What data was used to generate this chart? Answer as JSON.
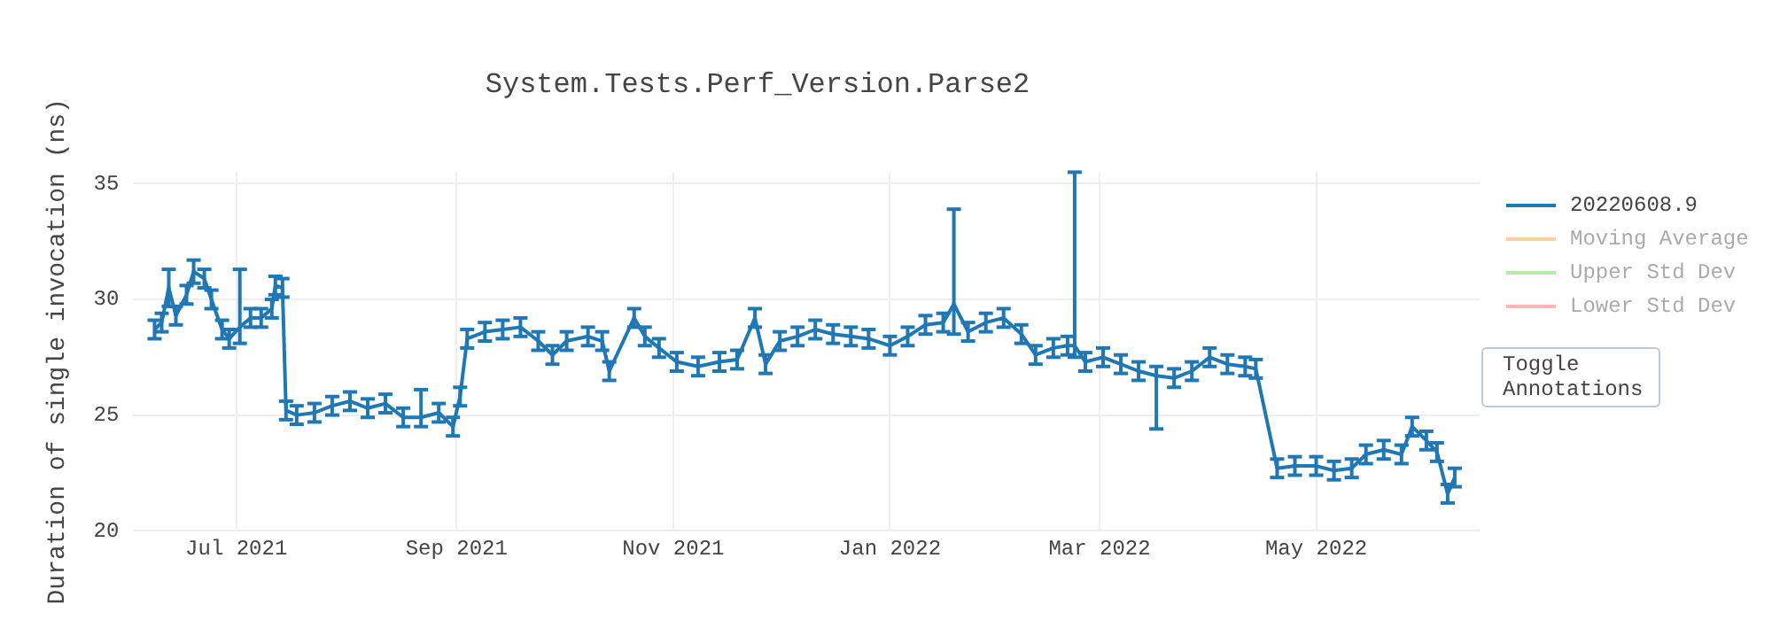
{
  "chart_data": {
    "type": "line",
    "title": "System.Tests.Perf_Version.Parse2",
    "ylabel": "Duration of single invocation (ns)",
    "x": [
      "2021-06-08",
      "2021-06-10",
      "2021-06-12",
      "2021-06-14",
      "2021-06-17",
      "2021-06-19",
      "2021-06-22",
      "2021-06-24",
      "2021-06-27",
      "2021-06-29",
      "2021-07-02",
      "2021-07-05",
      "2021-07-08",
      "2021-07-11",
      "2021-07-12",
      "2021-07-14",
      "2021-07-15",
      "2021-07-18",
      "2021-07-23",
      "2021-07-28",
      "2021-08-02",
      "2021-08-07",
      "2021-08-12",
      "2021-08-17",
      "2021-08-22",
      "2021-08-27",
      "2021-08-31",
      "2021-09-02",
      "2021-09-04",
      "2021-09-09",
      "2021-09-14",
      "2021-09-19",
      "2021-09-24",
      "2021-09-28",
      "2021-10-02",
      "2021-10-08",
      "2021-10-12",
      "2021-10-14",
      "2021-10-21",
      "2021-10-24",
      "2021-10-28",
      "2021-11-02",
      "2021-11-08",
      "2021-11-14",
      "2021-11-19",
      "2021-11-24",
      "2021-11-27",
      "2021-12-01",
      "2021-12-06",
      "2021-12-11",
      "2021-12-16",
      "2021-12-21",
      "2021-12-26",
      "2022-01-01",
      "2022-01-06",
      "2022-01-11",
      "2022-01-16",
      "2022-01-19",
      "2022-01-23",
      "2022-01-28",
      "2022-02-02",
      "2022-02-07",
      "2022-02-11",
      "2022-02-16",
      "2022-02-20",
      "2022-02-22",
      "2022-02-25",
      "2022-03-02",
      "2022-03-07",
      "2022-03-12",
      "2022-03-17",
      "2022-03-22",
      "2022-03-27",
      "2022-04-01",
      "2022-04-06",
      "2022-04-11",
      "2022-04-14",
      "2022-04-20",
      "2022-04-25",
      "2022-05-01",
      "2022-05-06",
      "2022-05-11",
      "2022-05-15",
      "2022-05-20",
      "2022-05-25",
      "2022-05-28",
      "2022-06-01",
      "2022-06-04",
      "2022-06-07",
      "2022-06-09"
    ],
    "series": [
      {
        "name": "20220608.9",
        "color": "#1f77b4",
        "values": [
          28.7,
          29.0,
          30.5,
          29.3,
          30.2,
          31.2,
          30.9,
          30.0,
          28.7,
          28.3,
          28.8,
          29.2,
          29.2,
          29.6,
          30.6,
          30.5,
          25.2,
          25.0,
          25.1,
          25.4,
          25.6,
          25.3,
          25.5,
          24.9,
          24.9,
          25.1,
          24.5,
          25.8,
          28.3,
          28.6,
          28.7,
          28.8,
          28.2,
          27.6,
          28.2,
          28.4,
          28.2,
          26.9,
          29.2,
          28.4,
          27.9,
          27.3,
          27.1,
          27.3,
          27.4,
          29.2,
          27.2,
          28.2,
          28.4,
          28.7,
          28.5,
          28.4,
          28.3,
          28.0,
          28.4,
          28.9,
          29.0,
          29.8,
          28.6,
          29.0,
          29.2,
          28.5,
          27.6,
          27.9,
          28.0,
          28.0,
          27.3,
          27.5,
          27.2,
          26.9,
          26.7,
          26.6,
          26.9,
          27.5,
          27.2,
          27.1,
          27.0,
          22.7,
          22.8,
          22.8,
          22.6,
          22.7,
          23.3,
          23.5,
          23.3,
          24.5,
          23.9,
          23.4,
          21.6,
          22.3
        ],
        "errors": [
          0.4,
          0.4,
          0.8,
          0.4,
          0.4,
          0.5,
          0.4,
          0.4,
          0.4,
          0.4,
          [
            28.1,
            31.3
          ],
          0.4,
          0.4,
          0.4,
          0.4,
          0.4,
          0.4,
          0.4,
          0.4,
          0.4,
          0.4,
          0.4,
          0.4,
          0.4,
          [
            24.5,
            26.1
          ],
          0.4,
          0.4,
          0.4,
          0.4,
          0.4,
          0.4,
          0.4,
          0.4,
          0.4,
          0.4,
          0.4,
          0.4,
          0.4,
          0.4,
          0.4,
          0.4,
          0.4,
          0.4,
          0.4,
          0.4,
          0.4,
          0.4,
          0.4,
          0.4,
          0.4,
          0.4,
          0.4,
          0.4,
          0.4,
          0.4,
          0.4,
          0.4,
          [
            28.5,
            33.9
          ],
          0.4,
          0.4,
          0.4,
          0.4,
          0.4,
          0.4,
          0.4,
          [
            27.5,
            35.5
          ],
          0.4,
          0.4,
          0.4,
          0.4,
          [
            24.4,
            27.1
          ],
          0.4,
          0.4,
          0.4,
          0.4,
          0.4,
          0.4,
          0.4,
          0.4,
          0.4,
          0.4,
          0.4,
          0.4,
          0.4,
          0.4,
          0.4,
          0.4,
          0.4,
          0.4,
          0.4
        ]
      },
      {
        "name": "Moving Average",
        "color": "#ffbb78",
        "values": [
          null,
          null,
          null,
          null,
          null,
          null,
          null,
          null,
          null,
          null,
          null,
          null,
          null,
          null,
          null,
          null,
          null,
          null,
          null,
          null,
          null,
          null,
          null,
          null,
          null,
          null,
          null,
          null,
          null,
          null,
          null,
          null,
          null,
          null,
          null,
          null,
          null,
          null,
          null,
          null,
          null,
          null,
          null,
          null,
          null,
          null,
          null,
          null,
          null,
          null,
          null,
          null,
          null,
          null,
          null,
          null,
          null,
          null,
          null,
          null,
          null,
          null,
          null,
          null,
          null,
          null,
          null,
          null,
          null,
          null,
          null,
          null,
          null,
          null,
          null,
          null,
          null,
          null,
          null,
          null,
          null,
          null,
          null,
          null,
          null,
          null,
          null,
          null,
          null,
          null
        ]
      },
      {
        "name": "Upper Std Dev",
        "color": "#98df8a",
        "values": [
          null,
          null,
          null,
          null,
          null,
          null,
          null,
          null,
          null,
          null,
          null,
          null,
          null,
          null,
          null,
          null,
          null,
          null,
          null,
          null,
          null,
          null,
          null,
          null,
          null,
          null,
          null,
          null,
          null,
          null,
          null,
          null,
          null,
          null,
          null,
          null,
          null,
          null,
          null,
          null,
          null,
          null,
          null,
          null,
          null,
          null,
          null,
          null,
          null,
          null,
          null,
          null,
          null,
          null,
          null,
          null,
          null,
          null,
          null,
          null,
          null,
          null,
          null,
          null,
          null,
          null,
          null,
          null,
          null,
          null,
          null,
          null,
          null,
          null,
          null,
          null,
          null,
          null,
          null,
          null,
          null,
          null,
          null,
          null,
          null,
          null,
          null,
          null,
          null,
          null
        ]
      },
      {
        "name": "Lower Std Dev",
        "color": "#ff9896",
        "values": [
          null,
          null,
          null,
          null,
          null,
          null,
          null,
          null,
          null,
          null,
          null,
          null,
          null,
          null,
          null,
          null,
          null,
          null,
          null,
          null,
          null,
          null,
          null,
          null,
          null,
          null,
          null,
          null,
          null,
          null,
          null,
          null,
          null,
          null,
          null,
          null,
          null,
          null,
          null,
          null,
          null,
          null,
          null,
          null,
          null,
          null,
          null,
          null,
          null,
          null,
          null,
          null,
          null,
          null,
          null,
          null,
          null,
          null,
          null,
          null,
          null,
          null,
          null,
          null,
          null,
          null,
          null,
          null,
          null,
          null,
          null,
          null,
          null,
          null,
          null,
          null,
          null,
          null,
          null,
          null,
          null,
          null,
          null,
          null,
          null,
          null,
          null,
          null,
          null,
          null
        ]
      }
    ],
    "xlim": [
      "2021-06-02",
      "2022-06-16"
    ],
    "xticks": [
      {
        "value": "2021-07-01",
        "label": "Jul 2021"
      },
      {
        "value": "2021-09-01",
        "label": "Sep 2021"
      },
      {
        "value": "2021-11-01",
        "label": "Nov 2021"
      },
      {
        "value": "2022-01-01",
        "label": "Jan 2022"
      },
      {
        "value": "2022-03-01",
        "label": "Mar 2022"
      },
      {
        "value": "2022-05-01",
        "label": "May 2022"
      }
    ],
    "ylim": [
      20,
      35.5
    ],
    "yticks": [
      20,
      25,
      30,
      35
    ],
    "grid": true,
    "legend": "top right",
    "marker": "none",
    "line_style": "solid",
    "annotations": [
      "Toggle Annotations"
    ]
  }
}
